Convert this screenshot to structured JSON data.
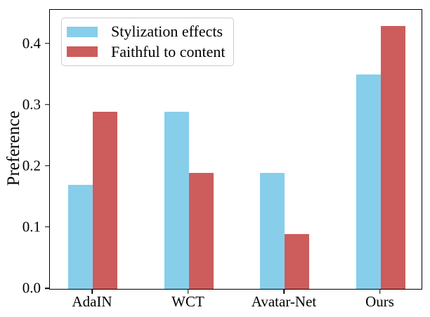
{
  "chart_data": {
    "type": "bar",
    "title": "",
    "xlabel": "",
    "ylabel": "Preference",
    "categories": [
      "AdaIN",
      "WCT",
      "Avatar-Net",
      "Ours"
    ],
    "series": [
      {
        "name": "Stylization effects",
        "color": "#87CEEB",
        "values": [
          0.17,
          0.29,
          0.19,
          0.35
        ]
      },
      {
        "name": "Faithful to content",
        "color": "#CD5C5C",
        "values": [
          0.29,
          0.19,
          0.09,
          0.43
        ]
      }
    ],
    "yticks": [
      "0.0",
      "0.1",
      "0.2",
      "0.3",
      "0.4"
    ],
    "ylim": [
      0,
      0.456
    ],
    "grid": false,
    "legend_position": "upper-left",
    "colors": {
      "axis": "#000000",
      "legend_border": "#cccccc",
      "background": "#ffffff"
    }
  }
}
